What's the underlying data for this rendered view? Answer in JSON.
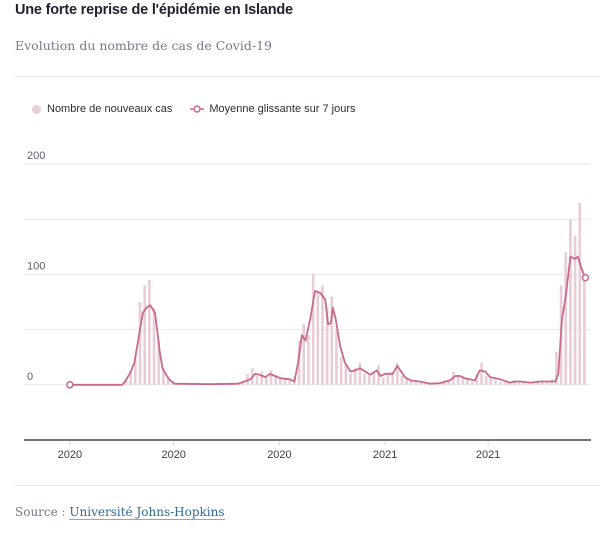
{
  "header": {
    "title": "Une forte reprise de l'épidémie en Islande",
    "subtitle": "Evolution du nombre de cas de Covid-19"
  },
  "legend": {
    "bars": "Nombre de nouveaux cas",
    "line": "Moyenne glissante sur 7 jours"
  },
  "footer": {
    "source_label": "Source :",
    "source_link": "Université Johns-Hopkins"
  },
  "colors": {
    "bar": "#e8cdd6",
    "line": "#c96b87",
    "axis": "#1e2230",
    "grid": "#e8e8eb"
  },
  "chart_data": {
    "type": "bar+line",
    "title": "Une forte reprise de l'épidémie en Islande",
    "subtitle": "Evolution du nombre de cas de Covid-19",
    "xlabel": "",
    "ylabel": "",
    "ylim": [
      -50,
      200
    ],
    "xlim": [
      -49,
      557
    ],
    "y_ticks": [
      {
        "value": 0,
        "label": "0"
      },
      {
        "value": 50,
        "label": ""
      },
      {
        "value": 100,
        "label": "100"
      },
      {
        "value": 150,
        "label": ""
      },
      {
        "value": 200,
        "label": "200"
      }
    ],
    "x_ticks": [
      {
        "day": 0,
        "label": "2020"
      },
      {
        "day": 111,
        "label": "2020"
      },
      {
        "day": 224,
        "label": "2020"
      },
      {
        "day": 337,
        "label": "2021"
      },
      {
        "day": 447,
        "label": "2021"
      }
    ],
    "grid": true,
    "legend_position": "top-left",
    "bars": {
      "name": "Nombre de nouveaux cas",
      "day_step": 5,
      "values": [
        0,
        0,
        0,
        0,
        0,
        0,
        0,
        0,
        0,
        0,
        0,
        0,
        5,
        12,
        25,
        75,
        90,
        95,
        70,
        40,
        15,
        6,
        3,
        1,
        0,
        1,
        0,
        1,
        0,
        1,
        0,
        1,
        2,
        1,
        0,
        1,
        1,
        3,
        10,
        15,
        8,
        12,
        6,
        13,
        9,
        7,
        5,
        4,
        8,
        40,
        55,
        45,
        100,
        85,
        90,
        70,
        80,
        50,
        25,
        18,
        10,
        15,
        20,
        10,
        8,
        12,
        18,
        6,
        9,
        12,
        20,
        8,
        5,
        3,
        4,
        2,
        1,
        2,
        1,
        2,
        4,
        3,
        12,
        9,
        7,
        5,
        3,
        10,
        20,
        8,
        6,
        4,
        3,
        2,
        3,
        4,
        2,
        3,
        2,
        3,
        2,
        4,
        3,
        5,
        30,
        90,
        120,
        150,
        135,
        165,
        95
      ]
    },
    "line": {
      "name": "Moyenne glissante sur 7 jours",
      "points": [
        [
          0,
          0
        ],
        [
          56,
          0
        ],
        [
          59,
          3
        ],
        [
          64,
          10
        ],
        [
          69,
          20
        ],
        [
          75,
          50
        ],
        [
          78,
          65
        ],
        [
          82,
          70
        ],
        [
          86,
          72
        ],
        [
          91,
          65
        ],
        [
          94,
          45
        ],
        [
          96,
          30
        ],
        [
          99,
          15
        ],
        [
          103,
          9
        ],
        [
          107,
          4
        ],
        [
          112,
          1
        ],
        [
          150,
          0.5
        ],
        [
          180,
          1
        ],
        [
          193,
          5
        ],
        [
          198,
          10
        ],
        [
          203,
          9
        ],
        [
          209,
          7
        ],
        [
          214,
          10
        ],
        [
          219,
          8
        ],
        [
          225,
          6
        ],
        [
          235,
          5
        ],
        [
          240,
          3
        ],
        [
          244,
          20
        ],
        [
          248,
          45
        ],
        [
          252,
          40
        ],
        [
          257,
          60
        ],
        [
          262,
          85
        ],
        [
          268,
          83
        ],
        [
          273,
          77
        ],
        [
          276,
          55
        ],
        [
          279,
          56
        ],
        [
          281,
          70
        ],
        [
          284,
          60
        ],
        [
          289,
          35
        ],
        [
          294,
          20
        ],
        [
          300,
          12
        ],
        [
          305,
          13
        ],
        [
          310,
          15
        ],
        [
          316,
          12
        ],
        [
          321,
          9
        ],
        [
          328,
          13
        ],
        [
          332,
          8
        ],
        [
          337,
          10
        ],
        [
          345,
          10
        ],
        [
          350,
          17
        ],
        [
          355,
          11
        ],
        [
          358,
          7
        ],
        [
          364,
          4
        ],
        [
          374,
          3
        ],
        [
          385,
          1
        ],
        [
          396,
          1.5
        ],
        [
          406,
          4
        ],
        [
          412,
          8
        ],
        [
          417,
          8
        ],
        [
          422,
          6
        ],
        [
          433,
          4
        ],
        [
          438,
          13
        ],
        [
          444,
          12
        ],
        [
          449,
          7
        ],
        [
          460,
          5
        ],
        [
          470,
          2
        ],
        [
          476,
          3
        ],
        [
          481,
          3
        ],
        [
          492,
          2
        ],
        [
          503,
          3
        ],
        [
          513,
          3
        ],
        [
          519,
          3
        ],
        [
          522,
          10
        ],
        [
          526,
          60
        ],
        [
          530,
          80
        ],
        [
          535,
          116
        ],
        [
          540,
          114
        ],
        [
          543,
          116
        ],
        [
          547,
          105
        ],
        [
          551,
          97
        ]
      ]
    }
  }
}
